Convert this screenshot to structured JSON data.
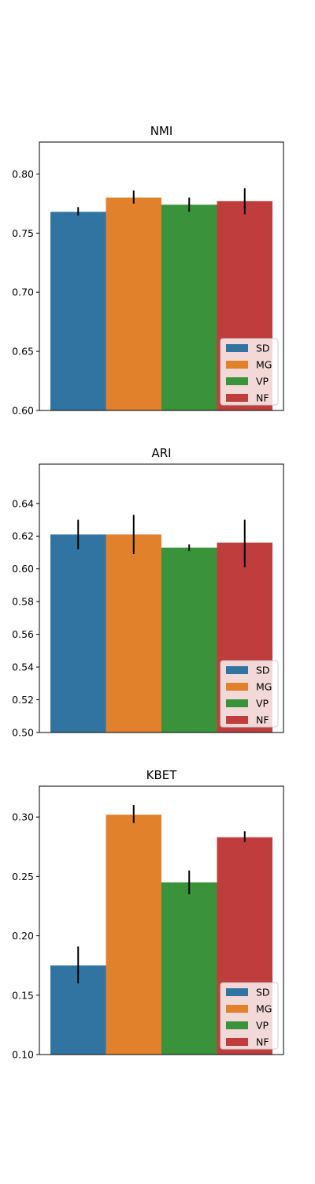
{
  "colors": {
    "SD": "#3274a1",
    "MG": "#e1812c",
    "VP": "#3a923a",
    "NF": "#c03d3e"
  },
  "chart_data": [
    {
      "type": "bar",
      "title": "NMI",
      "xlabel": "",
      "ylabel": "",
      "ylim": [
        0.6,
        0.827
      ],
      "yticks": [
        0.6,
        0.65,
        0.7,
        0.75,
        0.8
      ],
      "tick_labels": [
        "0.60",
        "0.65",
        "0.70",
        "0.75",
        "0.80"
      ],
      "grid": false,
      "legend_position": "lower-right",
      "series": [
        {
          "name": "SD",
          "value": 0.768,
          "err_low": 0.765,
          "err_high": 0.772
        },
        {
          "name": "MG",
          "value": 0.78,
          "err_low": 0.775,
          "err_high": 0.786
        },
        {
          "name": "VP",
          "value": 0.774,
          "err_low": 0.768,
          "err_high": 0.78
        },
        {
          "name": "NF",
          "value": 0.777,
          "err_low": 0.766,
          "err_high": 0.788
        }
      ]
    },
    {
      "type": "bar",
      "title": "ARI",
      "xlabel": "",
      "ylabel": "",
      "ylim": [
        0.5,
        0.664
      ],
      "yticks": [
        0.5,
        0.52,
        0.54,
        0.56,
        0.58,
        0.6,
        0.62,
        0.64
      ],
      "tick_labels": [
        "0.50",
        "0.52",
        "0.54",
        "0.56",
        "0.58",
        "0.60",
        "0.62",
        "0.64"
      ],
      "grid": false,
      "legend_position": "lower-right",
      "series": [
        {
          "name": "SD",
          "value": 0.621,
          "err_low": 0.612,
          "err_high": 0.63
        },
        {
          "name": "MG",
          "value": 0.621,
          "err_low": 0.609,
          "err_high": 0.633
        },
        {
          "name": "VP",
          "value": 0.613,
          "err_low": 0.611,
          "err_high": 0.615
        },
        {
          "name": "NF",
          "value": 0.616,
          "err_low": 0.601,
          "err_high": 0.63
        }
      ]
    },
    {
      "type": "bar",
      "title": "KBET",
      "xlabel": "",
      "ylabel": "",
      "ylim": [
        0.1,
        0.326
      ],
      "yticks": [
        0.1,
        0.15,
        0.2,
        0.25,
        0.3
      ],
      "tick_labels": [
        "0.10",
        "0.15",
        "0.20",
        "0.25",
        "0.30"
      ],
      "grid": false,
      "legend_position": "lower-right",
      "series": [
        {
          "name": "SD",
          "value": 0.175,
          "err_low": 0.16,
          "err_high": 0.191
        },
        {
          "name": "MG",
          "value": 0.302,
          "err_low": 0.295,
          "err_high": 0.31
        },
        {
          "name": "VP",
          "value": 0.245,
          "err_low": 0.235,
          "err_high": 0.255
        },
        {
          "name": "NF",
          "value": 0.283,
          "err_low": 0.279,
          "err_high": 0.288
        }
      ]
    }
  ]
}
